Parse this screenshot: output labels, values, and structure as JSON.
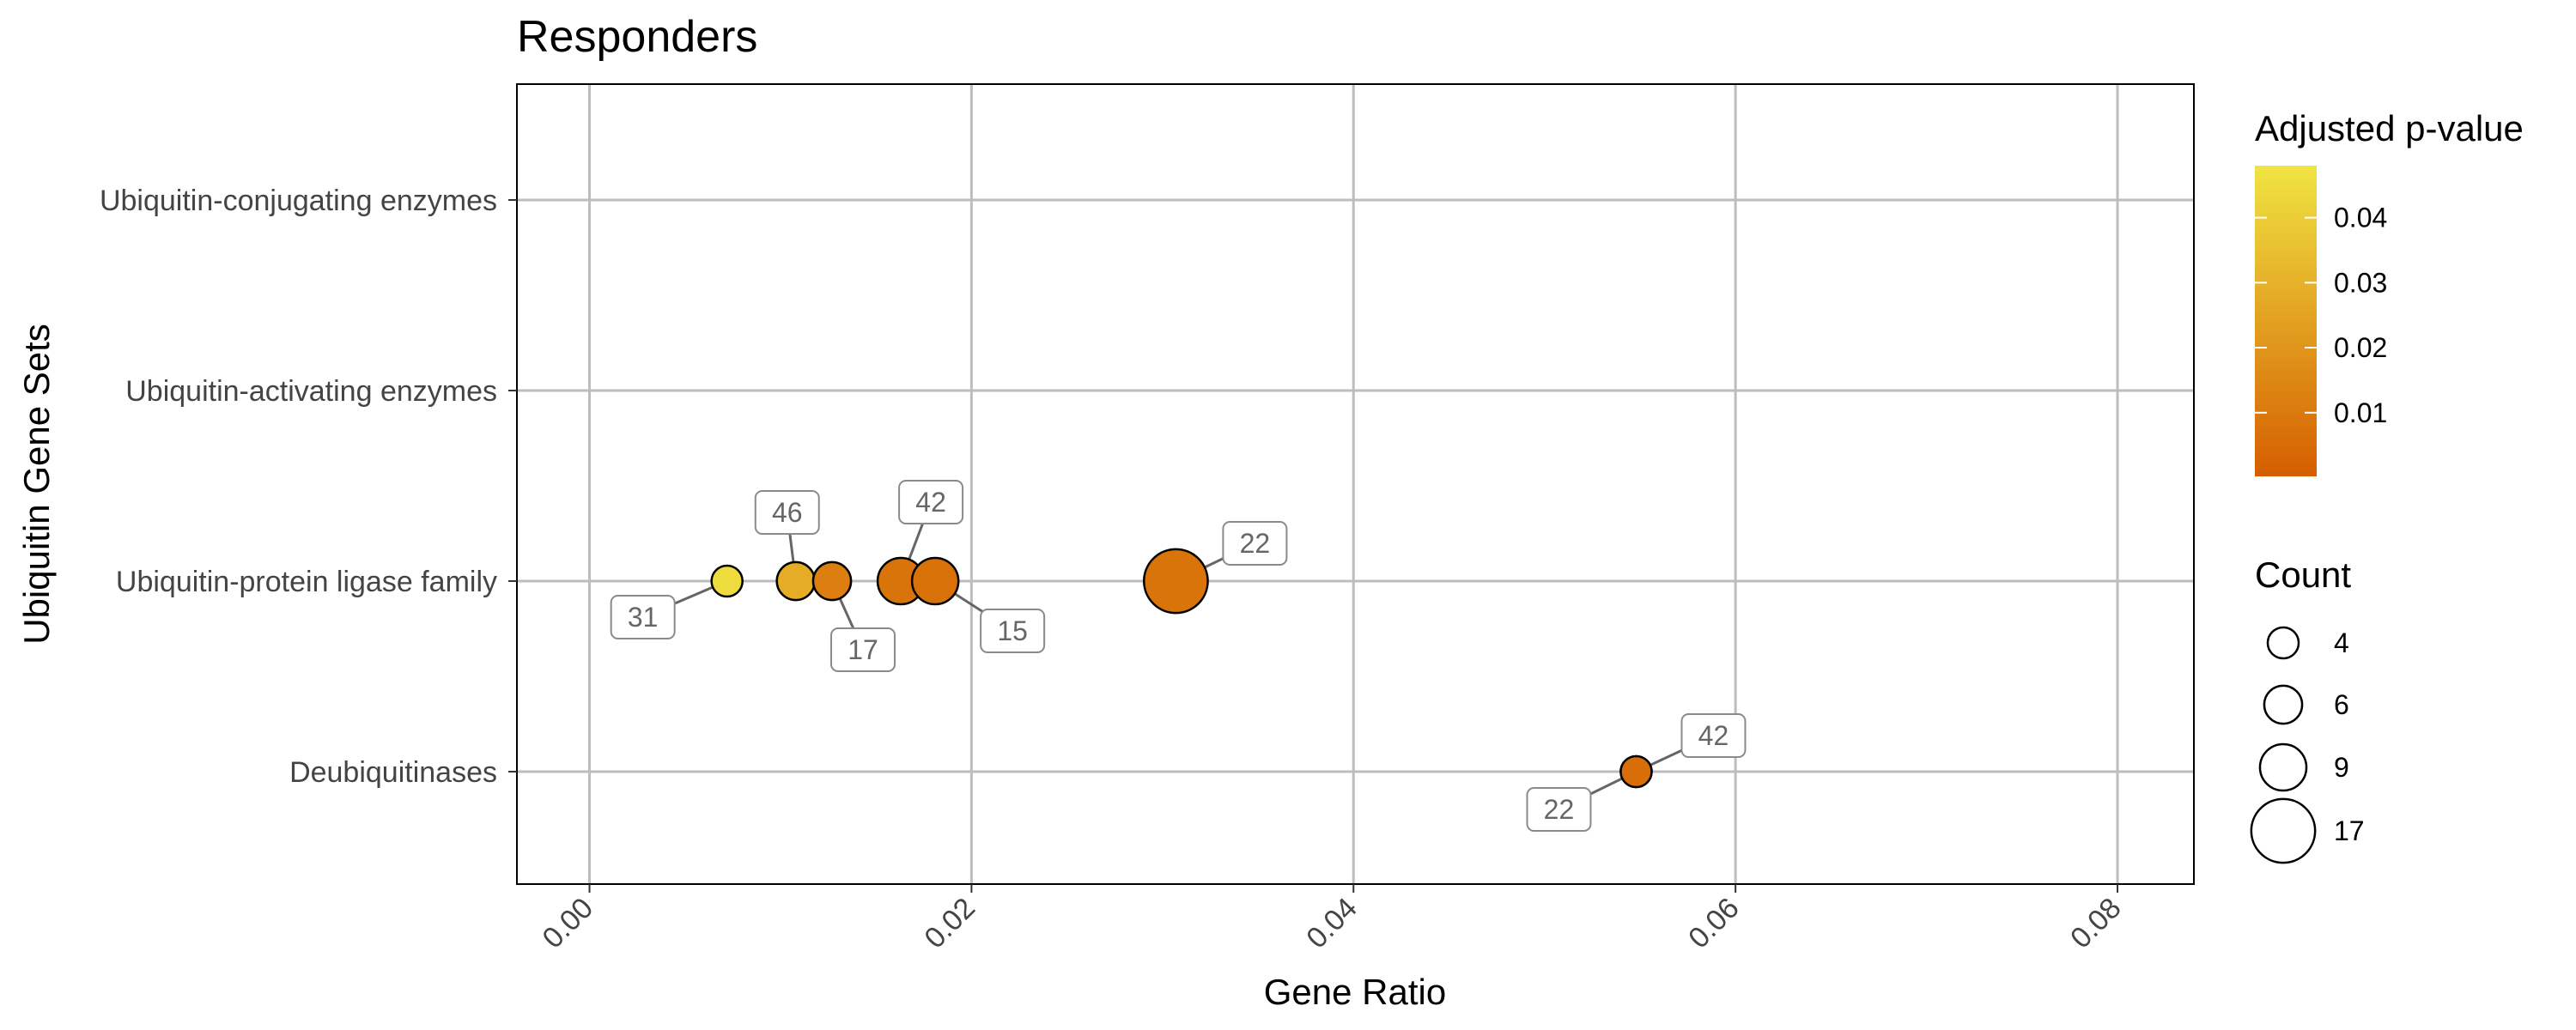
{
  "chart_data": {
    "type": "scatter",
    "title": "Responders",
    "xlabel": "Gene Ratio",
    "ylabel": "Ubiquitin Gene Sets",
    "xlim": [
      -0.0038,
      0.084
    ],
    "x_ticks": [
      0.0,
      0.02,
      0.04,
      0.06,
      0.08
    ],
    "x_tick_labels": [
      "0.00",
      "0.02",
      "0.04",
      "0.06",
      "0.08"
    ],
    "categories": [
      "Ubiquitin-conjugating enzymes",
      "Ubiquitin-activating enzymes",
      "Ubiquitin-protein ligase family",
      "Deubiquitinases"
    ],
    "grid": true,
    "points": [
      {
        "category": "Ubiquitin-protein ligase family",
        "x": 0.0072,
        "count": 4,
        "p_adj": 0.045,
        "label": "31"
      },
      {
        "category": "Ubiquitin-protein ligase family",
        "x": 0.0108,
        "count": 6,
        "p_adj": 0.028,
        "label": "46"
      },
      {
        "category": "Ubiquitin-protein ligase family",
        "x": 0.0127,
        "count": 6,
        "p_adj": 0.012,
        "label": "17"
      },
      {
        "category": "Ubiquitin-protein ligase family",
        "x": 0.0163,
        "count": 9,
        "p_adj": 0.008,
        "label": "42"
      },
      {
        "category": "Ubiquitin-protein ligase family",
        "x": 0.0181,
        "count": 9,
        "p_adj": 0.007,
        "label": "15"
      },
      {
        "category": "Ubiquitin-protein ligase family",
        "x": 0.0307,
        "count": 17,
        "p_adj": 0.008,
        "label": "22"
      },
      {
        "category": "Deubiquitinases",
        "x": 0.0548,
        "count": 4,
        "p_adj": 0.006,
        "label": "22"
      },
      {
        "category": "Deubiquitinases",
        "x": 0.0548,
        "count": 4,
        "p_adj": 0.006,
        "label": "42"
      }
    ],
    "legend": {
      "placement": "right",
      "color_title": "Adjusted p-value",
      "color_ticks": [
        "0.04",
        "0.03",
        "0.02",
        "0.01"
      ],
      "color_tick_values": [
        0.04,
        0.03,
        0.02,
        0.01
      ],
      "color_range": [
        0.0002,
        0.048
      ],
      "color_low": "#D55E00",
      "color_high": "#F0E442",
      "size_title": "Count",
      "size_entries": [
        "4",
        "6",
        "9",
        "17"
      ],
      "size_values": [
        4,
        6,
        9,
        17
      ]
    }
  }
}
